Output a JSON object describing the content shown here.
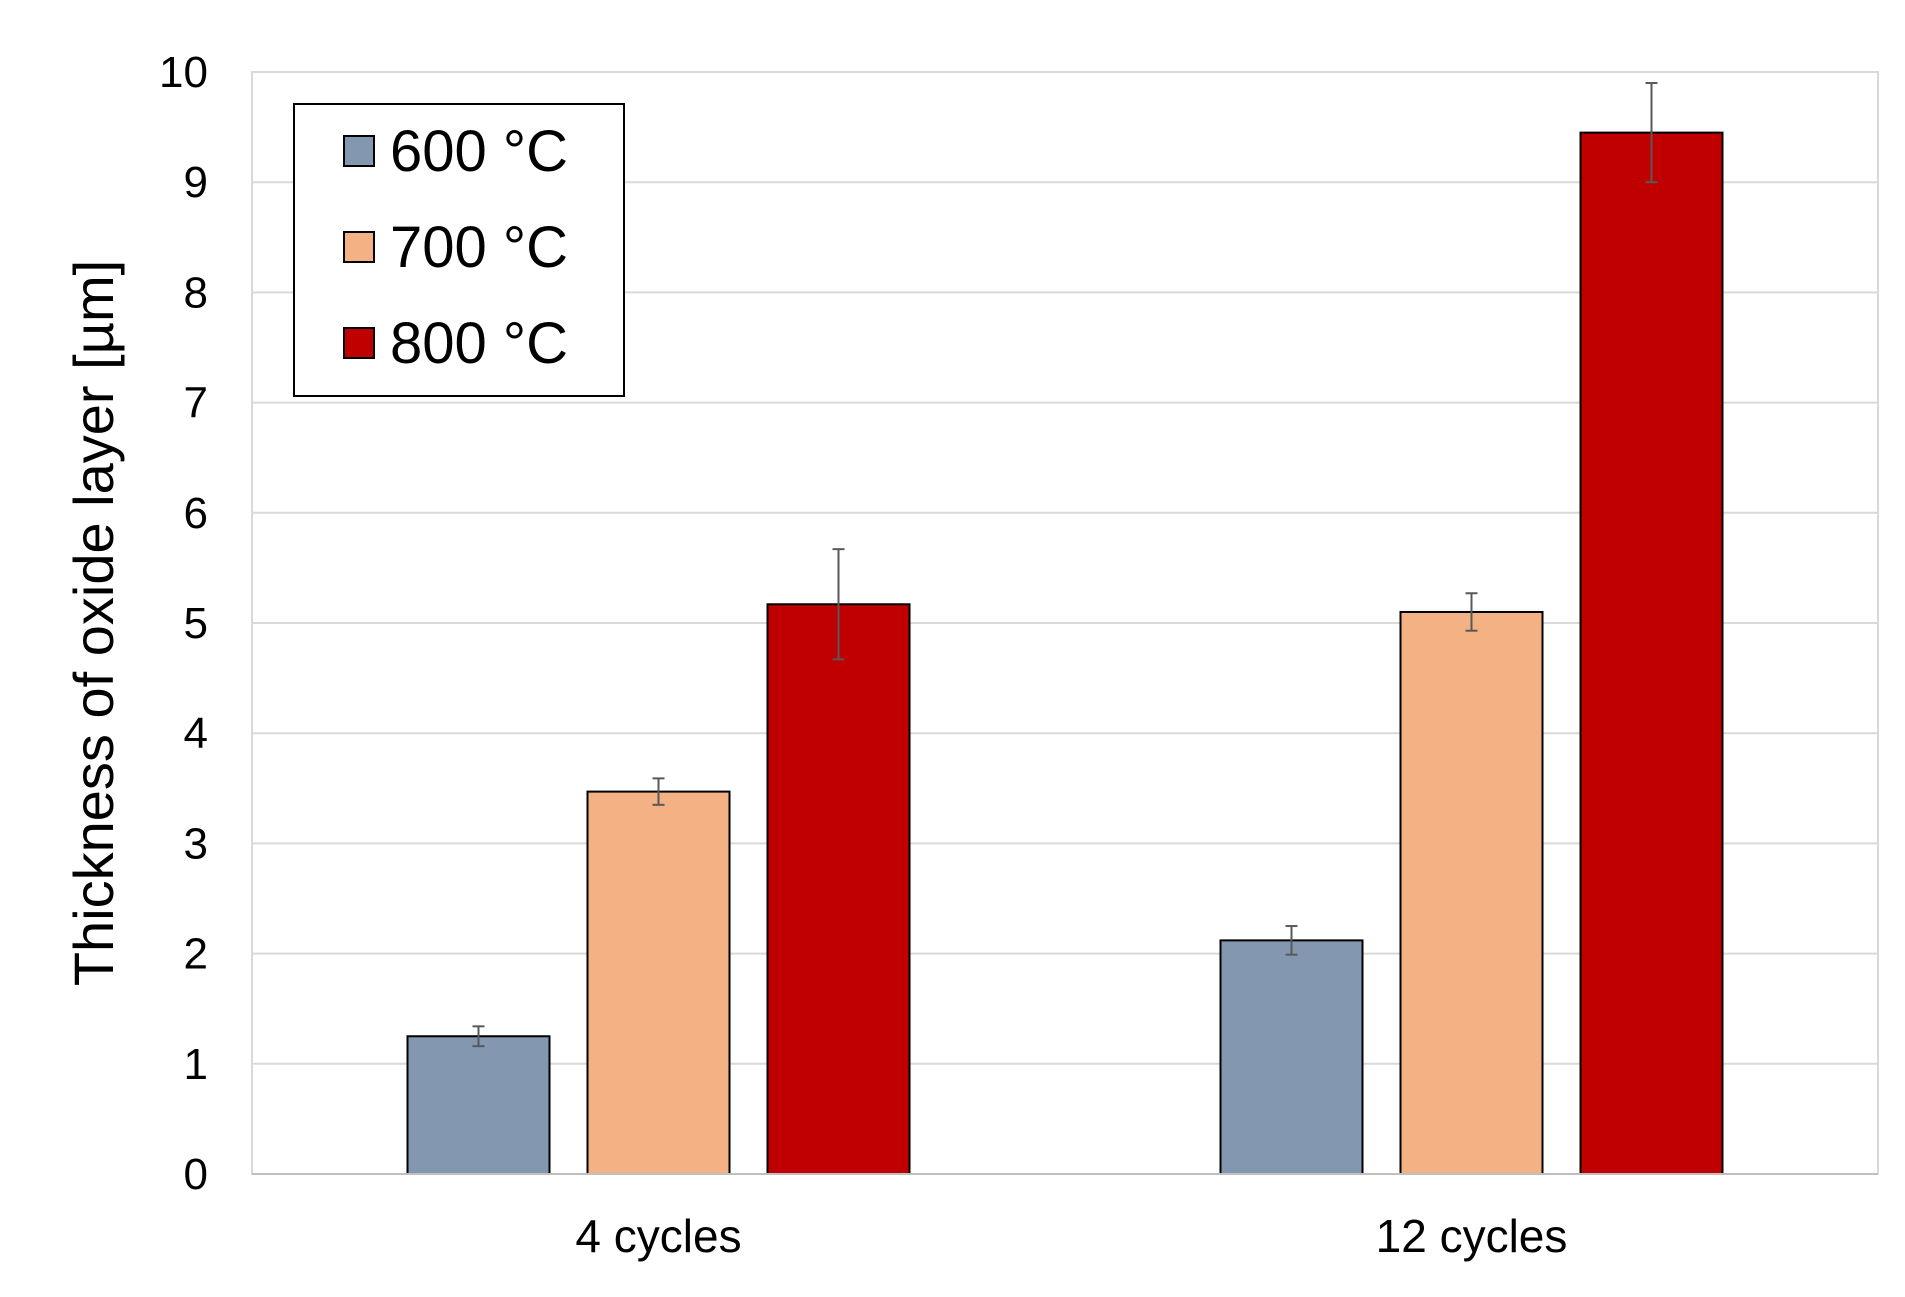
{
  "chart_data": {
    "type": "bar",
    "title": "",
    "xlabel": "",
    "ylabel": "Thickness of oxide layer [µm]",
    "categories": [
      "4 cycles",
      "12 cycles"
    ],
    "ylim": [
      0,
      10
    ],
    "yticks": [
      0,
      1,
      2,
      3,
      4,
      5,
      6,
      7,
      8,
      9,
      10
    ],
    "ytick_labels": [
      "0",
      "1",
      "2",
      "3",
      "4",
      "5",
      "6",
      "7",
      "8",
      "9",
      "10"
    ],
    "grid": true,
    "legend_position": "top-left",
    "series": [
      {
        "name": "600 °C",
        "color": "#8497B0",
        "values": [
          1.25,
          2.12
        ],
        "errors": [
          0.09,
          0.13
        ]
      },
      {
        "name": "700 °C",
        "color": "#F4B183",
        "values": [
          3.47,
          5.1
        ],
        "errors": [
          0.12,
          0.17
        ]
      },
      {
        "name": "800 °C",
        "color": "#C00000",
        "values": [
          5.17,
          9.45
        ],
        "errors": [
          0.5,
          0.45
        ]
      }
    ]
  }
}
